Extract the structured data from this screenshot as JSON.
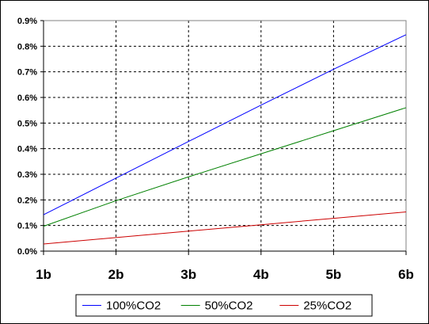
{
  "chart_data": {
    "type": "line",
    "title": "",
    "xlabel": "",
    "ylabel": "",
    "categories": [
      "1b",
      "2b",
      "3b",
      "4b",
      "5b",
      "6b"
    ],
    "y_tick_labels": [
      "0.0%",
      "0.1%",
      "0.2%",
      "0.3%",
      "0.4%",
      "0.5%",
      "0.6%",
      "0.7%",
      "0.8%",
      "0.9%"
    ],
    "ylim": [
      0,
      0.9
    ],
    "y_unit": "%",
    "grid": true,
    "legend_position": "bottom",
    "series": [
      {
        "name": "100%CO2",
        "color": "#0000ff",
        "values": [
          0.142,
          0.285,
          0.428,
          0.57,
          0.71,
          0.845
        ]
      },
      {
        "name": "50%CO2",
        "color": "#008000",
        "values": [
          0.097,
          0.197,
          0.29,
          0.38,
          0.47,
          0.56
        ]
      },
      {
        "name": "25%CO2",
        "color": "#cc0000",
        "values": [
          0.028,
          0.053,
          0.078,
          0.103,
          0.128,
          0.153
        ]
      }
    ]
  }
}
